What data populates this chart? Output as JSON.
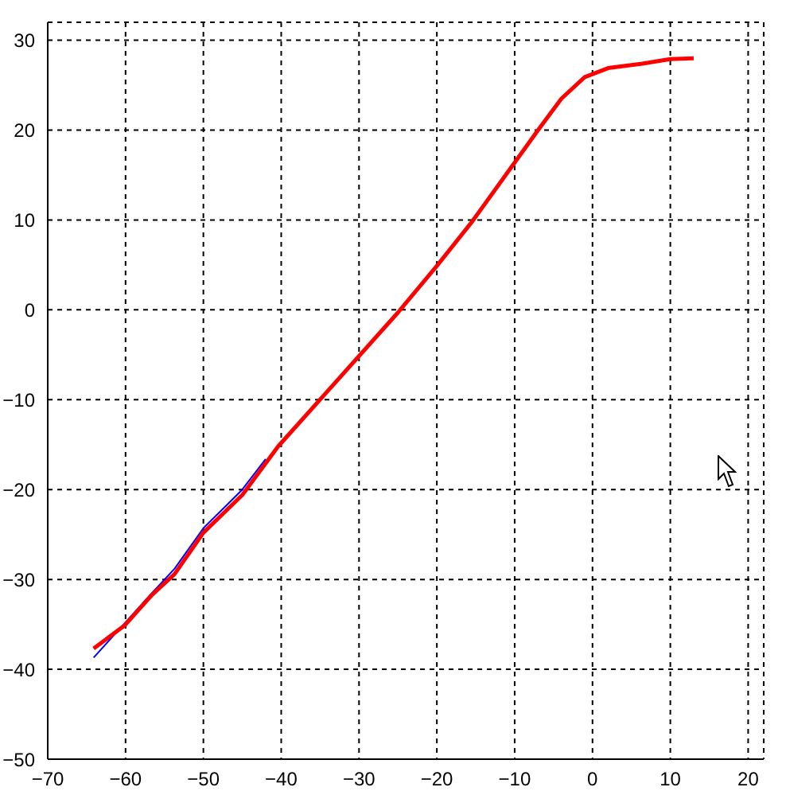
{
  "chart_data": {
    "type": "line",
    "xlim": [
      -70,
      22
    ],
    "ylim": [
      -50,
      32
    ],
    "xticks": [
      -70,
      -60,
      -50,
      -40,
      -30,
      -20,
      -10,
      0,
      10,
      20
    ],
    "yticks": [
      -50,
      -40,
      -30,
      -20,
      -10,
      0,
      10,
      20,
      30
    ],
    "grid": true,
    "marker": "none",
    "line_style": "solid",
    "series": [
      {
        "color": "#0000ff",
        "x": [
          -64.1,
          -56.7,
          -53.7,
          -50,
          -45,
          -42
        ],
        "values": [
          -38.7,
          -31.6,
          -28.8,
          -24.3,
          -20,
          -16.6
        ]
      },
      {
        "color": "#ff0000",
        "x": [
          -64.1,
          -60.1,
          -56.7,
          -53.7,
          -50,
          -45,
          -40.4,
          -34.3,
          -25,
          -20,
          -15.4,
          -10,
          -7,
          -4,
          -1,
          2,
          6.4,
          10,
          13
        ],
        "values": [
          -37.7,
          -35.1,
          -31.8,
          -29.4,
          -24.8,
          -20.6,
          -15.2,
          -9.3,
          -0.3,
          4.9,
          9.9,
          16.4,
          20,
          23.5,
          25.9,
          26.9,
          27.4,
          27.9,
          28
        ]
      }
    ]
  }
}
